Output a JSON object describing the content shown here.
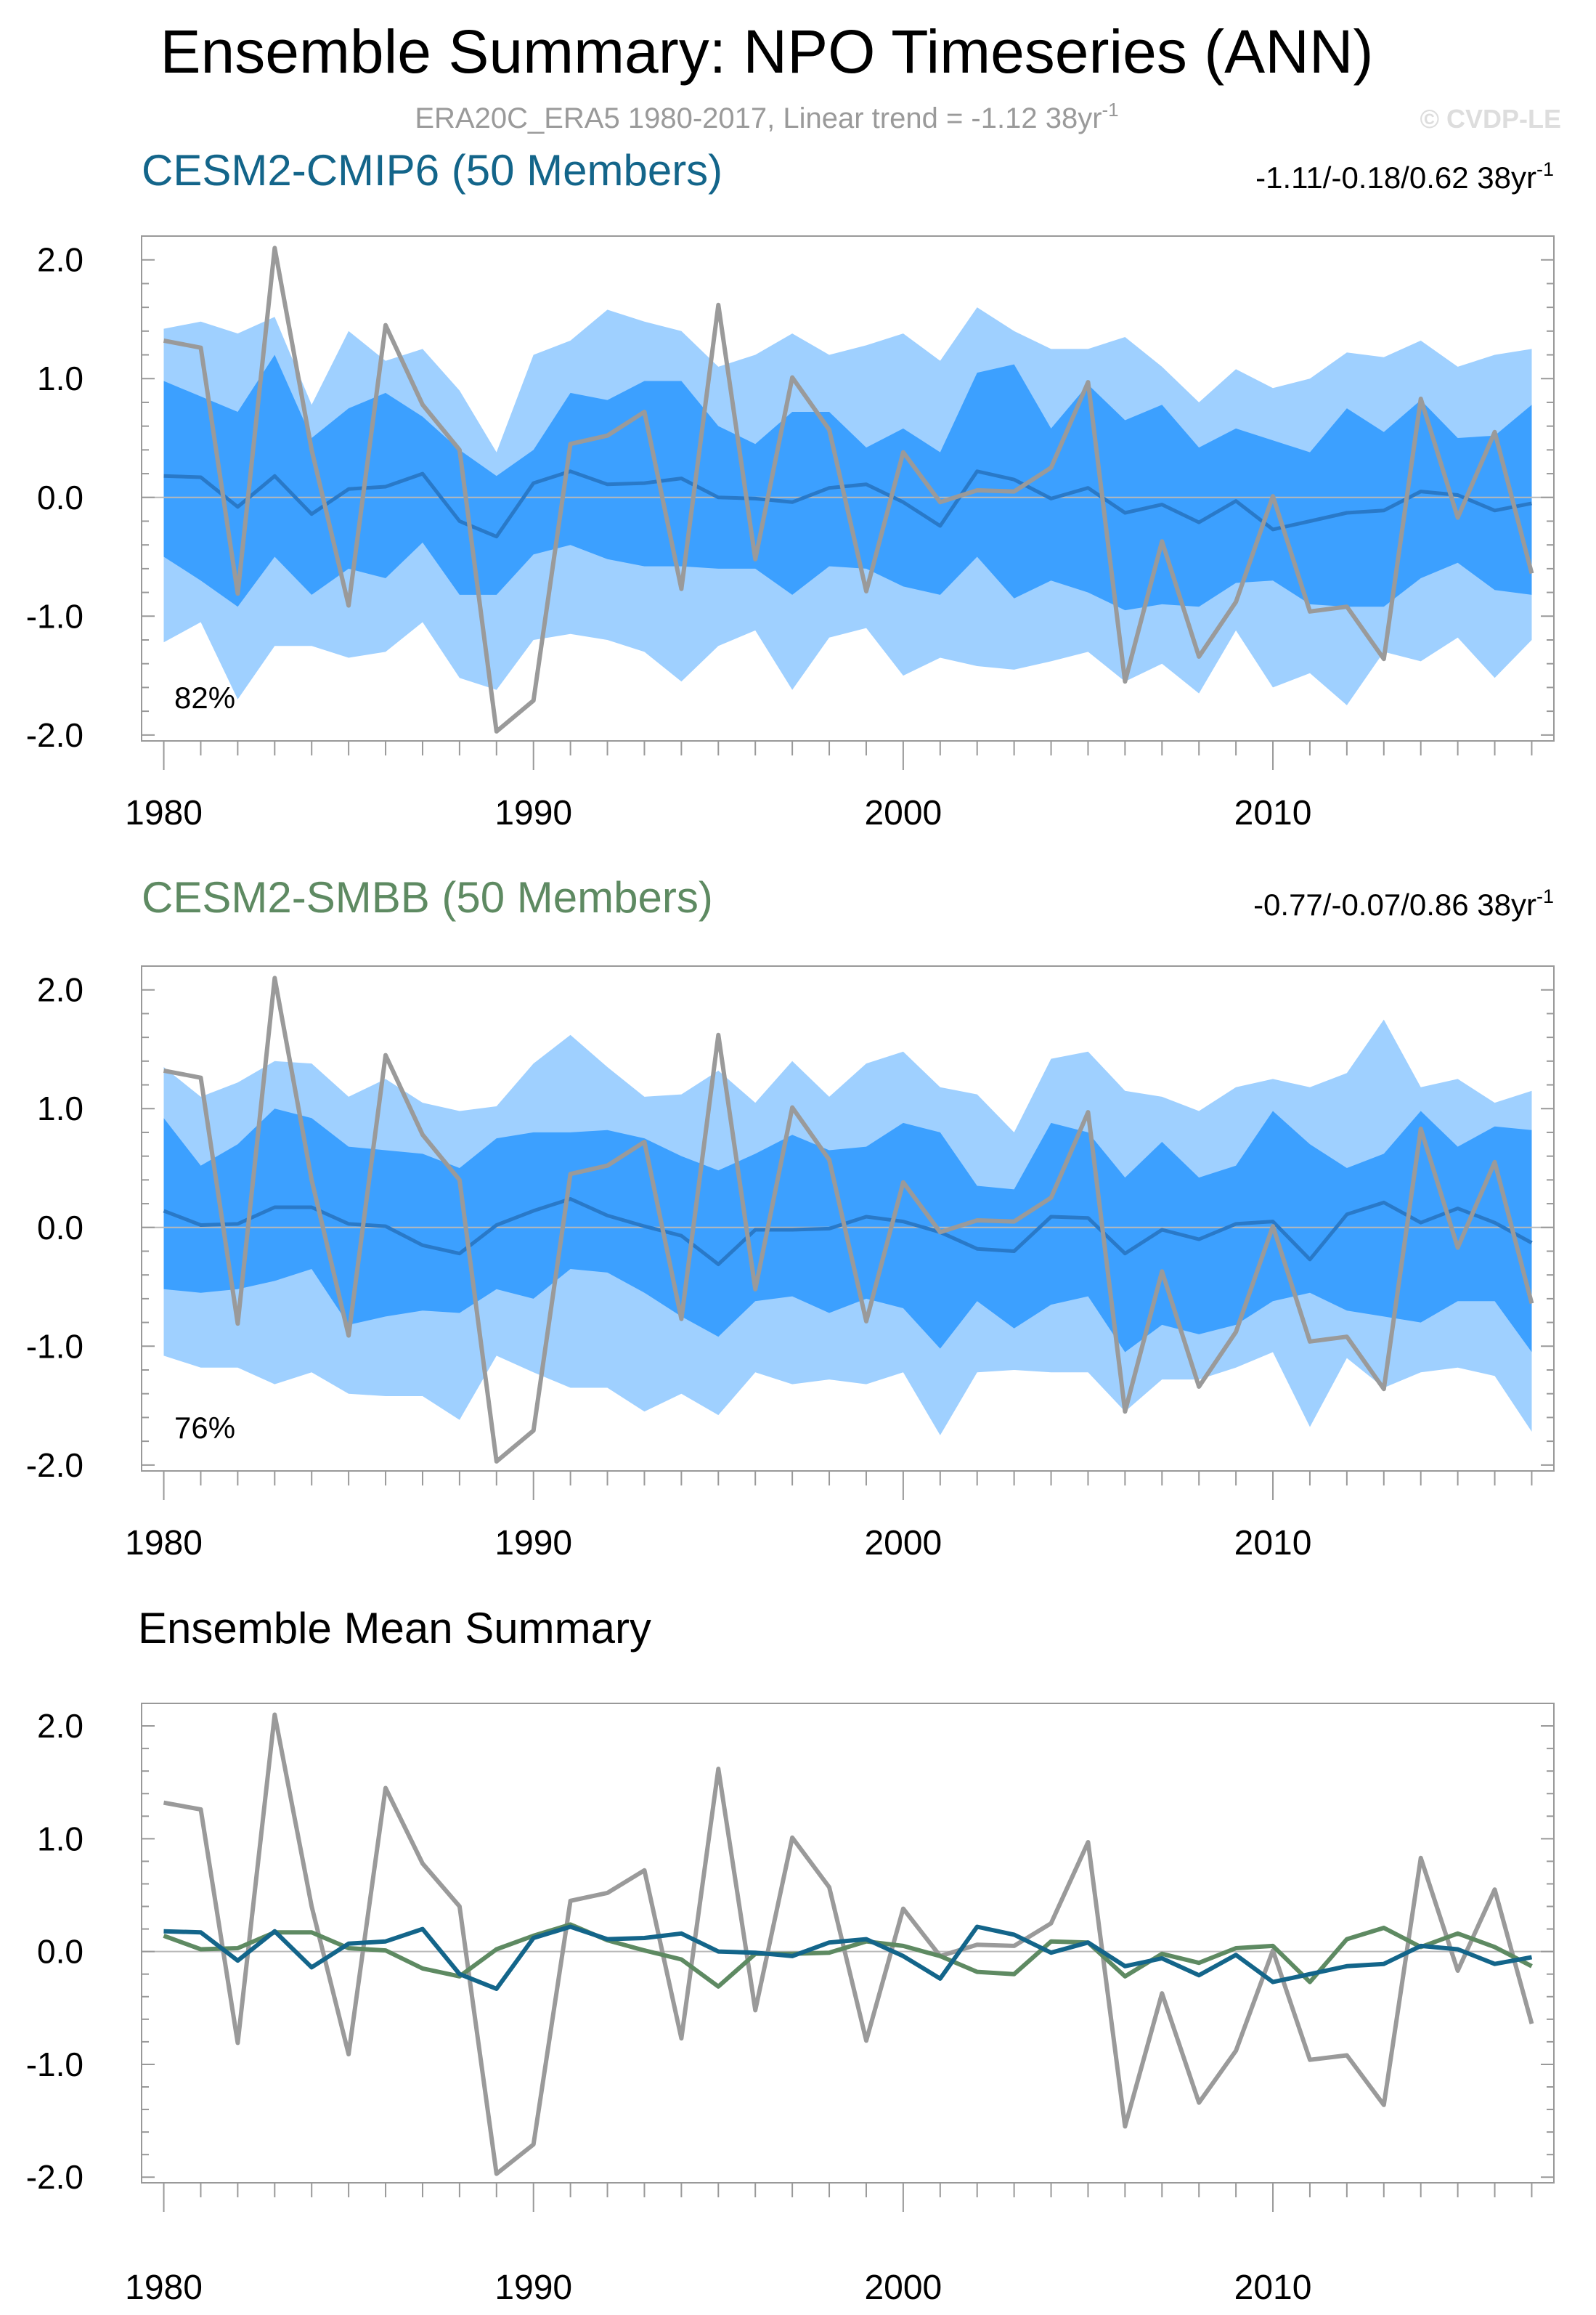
{
  "page": {
    "title": "Ensemble Summary: NPO Timeseries (ANN)",
    "subtitle_prefix": "ERA20C_ERA5 1980-2017, Linear trend = -1.12 38yr",
    "subtitle_sup": "-1",
    "copyright": "© CVDP-LE"
  },
  "colors": {
    "band_outer": "#9fd0ff",
    "band_inner": "#3ca0ff",
    "ens_line": "#2979c8",
    "obs_line": "#9a9a9a",
    "cmip6": "#13658a",
    "smbb": "#5e8a62",
    "zero": "#b8b8b8",
    "frame": "#999999"
  },
  "chart_data": [
    {
      "type": "area",
      "panel": "cmip6",
      "title": "CESM2-CMIP6 (50 Members)",
      "trend_label": "-1.11/-0.18/0.62 38yr",
      "trend_sup": "-1",
      "pct_label": "82%",
      "x": [
        1980,
        1981,
        1982,
        1983,
        1984,
        1985,
        1986,
        1987,
        1988,
        1989,
        1990,
        1991,
        1992,
        1993,
        1994,
        1995,
        1996,
        1997,
        1998,
        1999,
        2000,
        2001,
        2002,
        2003,
        2004,
        2005,
        2006,
        2007,
        2008,
        2009,
        2010,
        2011,
        2012,
        2013,
        2014,
        2015,
        2016,
        2017
      ],
      "xlim": [
        1979.4,
        2017.6
      ],
      "ylim": [
        -2.05,
        2.2
      ],
      "xticks": [
        1980,
        1990,
        2000,
        2010
      ],
      "xtick_labels": [
        "1980",
        "1990",
        "2000",
        "2010"
      ],
      "yticks": [
        -2.0,
        -1.0,
        0.0,
        1.0,
        2.0
      ],
      "ytick_labels": [
        "-2.0",
        "-1.0",
        "0.0",
        "1.0",
        "2.0"
      ],
      "series": [
        {
          "name": "ensemble max",
          "values": [
            1.42,
            1.48,
            1.38,
            1.52,
            0.78,
            1.4,
            1.15,
            1.25,
            0.9,
            0.38,
            1.2,
            1.32,
            1.58,
            1.48,
            1.4,
            1.1,
            1.2,
            1.38,
            1.2,
            1.28,
            1.38,
            1.15,
            1.6,
            1.4,
            1.25,
            1.25,
            1.35,
            1.1,
            0.8,
            1.08,
            0.92,
            1.0,
            1.22,
            1.18,
            1.32,
            1.1,
            1.2,
            1.25
          ]
        },
        {
          "name": "ensemble 90th pct",
          "values": [
            0.98,
            0.85,
            0.72,
            1.2,
            0.5,
            0.75,
            0.88,
            0.68,
            0.4,
            0.18,
            0.4,
            0.88,
            0.82,
            0.98,
            0.98,
            0.6,
            0.45,
            0.72,
            0.72,
            0.42,
            0.58,
            0.38,
            1.05,
            1.12,
            0.58,
            0.95,
            0.65,
            0.78,
            0.42,
            0.58,
            0.48,
            0.38,
            0.75,
            0.55,
            0.82,
            0.5,
            0.52,
            0.78
          ]
        },
        {
          "name": "ensemble mean",
          "values": [
            0.18,
            0.17,
            -0.08,
            0.18,
            -0.14,
            0.07,
            0.09,
            0.2,
            -0.2,
            -0.33,
            0.12,
            0.22,
            0.11,
            0.12,
            0.16,
            0.0,
            -0.01,
            -0.04,
            0.08,
            0.11,
            -0.04,
            -0.24,
            0.22,
            0.15,
            -0.01,
            0.08,
            -0.13,
            -0.06,
            -0.21,
            -0.03,
            -0.27,
            -0.2,
            -0.13,
            -0.11,
            0.05,
            0.02,
            -0.11,
            -0.05
          ]
        },
        {
          "name": "ensemble 10th pct",
          "values": [
            -0.5,
            -0.7,
            -0.92,
            -0.5,
            -0.82,
            -0.6,
            -0.68,
            -0.38,
            -0.82,
            -0.82,
            -0.48,
            -0.4,
            -0.52,
            -0.58,
            -0.58,
            -0.6,
            -0.6,
            -0.82,
            -0.58,
            -0.6,
            -0.75,
            -0.82,
            -0.5,
            -0.85,
            -0.7,
            -0.8,
            -0.95,
            -0.9,
            -0.92,
            -0.72,
            -0.7,
            -0.9,
            -0.92,
            -0.92,
            -0.68,
            -0.55,
            -0.78,
            -0.82
          ]
        },
        {
          "name": "ensemble min",
          "values": [
            -1.22,
            -1.05,
            -1.7,
            -1.25,
            -1.25,
            -1.35,
            -1.3,
            -1.05,
            -1.52,
            -1.62,
            -1.2,
            -1.15,
            -1.2,
            -1.3,
            -1.55,
            -1.25,
            -1.12,
            -1.62,
            -1.18,
            -1.1,
            -1.5,
            -1.35,
            -1.42,
            -1.45,
            -1.38,
            -1.3,
            -1.55,
            -1.4,
            -1.65,
            -1.12,
            -1.6,
            -1.48,
            -1.75,
            -1.3,
            -1.38,
            -1.18,
            -1.52,
            -1.2
          ]
        },
        {
          "name": "ERA20C_ERA5",
          "values": [
            1.32,
            1.26,
            -0.81,
            2.1,
            0.4,
            -0.91,
            1.45,
            0.78,
            0.4,
            -1.97,
            -1.71,
            0.45,
            0.52,
            0.72,
            -0.77,
            1.62,
            -0.52,
            1.01,
            0.57,
            -0.79,
            0.38,
            -0.04,
            0.06,
            0.05,
            0.25,
            0.97,
            -1.55,
            -0.37,
            -1.34,
            -0.88,
            0.01,
            -0.96,
            -0.92,
            -1.36,
            0.83,
            -0.17,
            0.55,
            -0.64
          ]
        }
      ]
    },
    {
      "type": "area",
      "panel": "smbb",
      "title": "CESM2-SMBB (50 Members)",
      "trend_label": "-0.77/-0.07/0.86 38yr",
      "trend_sup": "-1",
      "pct_label": "76%",
      "x": [
        1980,
        1981,
        1982,
        1983,
        1984,
        1985,
        1986,
        1987,
        1988,
        1989,
        1990,
        1991,
        1992,
        1993,
        1994,
        1995,
        1996,
        1997,
        1998,
        1999,
        2000,
        2001,
        2002,
        2003,
        2004,
        2005,
        2006,
        2007,
        2008,
        2009,
        2010,
        2011,
        2012,
        2013,
        2014,
        2015,
        2016,
        2017
      ],
      "xlim": [
        1979.4,
        2017.6
      ],
      "ylim": [
        -2.05,
        2.2
      ],
      "xticks": [
        1980,
        1990,
        2000,
        2010
      ],
      "xtick_labels": [
        "1980",
        "1990",
        "2000",
        "2010"
      ],
      "yticks": [
        -2.0,
        -1.0,
        0.0,
        1.0,
        2.0
      ],
      "ytick_labels": [
        "-2.0",
        "-1.0",
        "0.0",
        "1.0",
        "2.0"
      ],
      "series": [
        {
          "name": "ensemble max",
          "values": [
            1.35,
            1.1,
            1.22,
            1.4,
            1.38,
            1.1,
            1.25,
            1.05,
            0.98,
            1.02,
            1.38,
            1.62,
            1.35,
            1.1,
            1.12,
            1.32,
            1.05,
            1.4,
            1.1,
            1.38,
            1.48,
            1.18,
            1.12,
            0.8,
            1.42,
            1.48,
            1.15,
            1.1,
            0.98,
            1.18,
            1.25,
            1.18,
            1.3,
            1.75,
            1.18,
            1.25,
            1.05,
            1.15
          ]
        },
        {
          "name": "ensemble 90th pct",
          "values": [
            0.92,
            0.52,
            0.7,
            1.0,
            0.92,
            0.68,
            0.65,
            0.62,
            0.5,
            0.75,
            0.8,
            0.8,
            0.82,
            0.75,
            0.6,
            0.48,
            0.62,
            0.78,
            0.65,
            0.68,
            0.88,
            0.8,
            0.35,
            0.32,
            0.88,
            0.8,
            0.42,
            0.72,
            0.42,
            0.52,
            0.98,
            0.7,
            0.5,
            0.62,
            0.98,
            0.68,
            0.85,
            0.82
          ]
        },
        {
          "name": "ensemble mean",
          "values": [
            0.14,
            0.02,
            0.03,
            0.17,
            0.17,
            0.03,
            0.01,
            -0.15,
            -0.22,
            0.02,
            0.14,
            0.24,
            0.1,
            0.01,
            -0.07,
            -0.31,
            -0.02,
            -0.02,
            -0.01,
            0.09,
            0.05,
            -0.04,
            -0.18,
            -0.2,
            0.09,
            0.08,
            -0.22,
            -0.02,
            -0.1,
            0.03,
            0.05,
            -0.27,
            0.11,
            0.21,
            0.04,
            0.16,
            0.04,
            -0.13
          ]
        },
        {
          "name": "ensemble 10th pct",
          "values": [
            -0.52,
            -0.55,
            -0.52,
            -0.45,
            -0.35,
            -0.82,
            -0.75,
            -0.7,
            -0.72,
            -0.52,
            -0.6,
            -0.35,
            -0.38,
            -0.55,
            -0.75,
            -0.92,
            -0.62,
            -0.58,
            -0.72,
            -0.6,
            -0.68,
            -1.02,
            -0.62,
            -0.85,
            -0.65,
            -0.58,
            -1.05,
            -0.82,
            -0.9,
            -0.82,
            -0.62,
            -0.55,
            -0.7,
            -0.75,
            -0.8,
            -0.62,
            -0.62,
            -1.05
          ]
        },
        {
          "name": "ensemble min",
          "values": [
            -1.08,
            -1.18,
            -1.18,
            -1.32,
            -1.22,
            -1.4,
            -1.42,
            -1.42,
            -1.62,
            -1.08,
            -1.22,
            -1.35,
            -1.35,
            -1.55,
            -1.4,
            -1.58,
            -1.22,
            -1.32,
            -1.28,
            -1.32,
            -1.22,
            -1.75,
            -1.22,
            -1.2,
            -1.22,
            -1.22,
            -1.55,
            -1.28,
            -1.28,
            -1.18,
            -1.05,
            -1.68,
            -1.1,
            -1.35,
            -1.22,
            -1.18,
            -1.25,
            -1.72
          ]
        },
        {
          "name": "ERA20C_ERA5",
          "values": [
            1.32,
            1.26,
            -0.81,
            2.1,
            0.4,
            -0.91,
            1.45,
            0.78,
            0.4,
            -1.97,
            -1.71,
            0.45,
            0.52,
            0.72,
            -0.77,
            1.62,
            -0.52,
            1.01,
            0.57,
            -0.79,
            0.38,
            -0.04,
            0.06,
            0.05,
            0.25,
            0.97,
            -1.55,
            -0.37,
            -1.34,
            -0.88,
            0.01,
            -0.96,
            -0.92,
            -1.36,
            0.83,
            -0.17,
            0.55,
            -0.64
          ]
        }
      ]
    },
    {
      "type": "line",
      "panel": "mean",
      "title": "Ensemble Mean Summary",
      "x": [
        1980,
        1981,
        1982,
        1983,
        1984,
        1985,
        1986,
        1987,
        1988,
        1989,
        1990,
        1991,
        1992,
        1993,
        1994,
        1995,
        1996,
        1997,
        1998,
        1999,
        2000,
        2001,
        2002,
        2003,
        2004,
        2005,
        2006,
        2007,
        2008,
        2009,
        2010,
        2011,
        2012,
        2013,
        2014,
        2015,
        2016,
        2017
      ],
      "xlim": [
        1979.4,
        2017.6
      ],
      "ylim": [
        -2.05,
        2.2
      ],
      "xticks": [
        1980,
        1990,
        2000,
        2010
      ],
      "xtick_labels": [
        "1980",
        "1990",
        "2000",
        "2010"
      ],
      "yticks": [
        -2.0,
        -1.0,
        0.0,
        1.0,
        2.0
      ],
      "ytick_labels": [
        "-2.0",
        "-1.0",
        "0.0",
        "1.0",
        "2.0"
      ],
      "series": [
        {
          "name": "ERA20C_ERA5",
          "values": [
            1.32,
            1.26,
            -0.81,
            2.1,
            0.4,
            -0.91,
            1.45,
            0.78,
            0.4,
            -1.97,
            -1.71,
            0.45,
            0.52,
            0.72,
            -0.77,
            1.62,
            -0.52,
            1.01,
            0.57,
            -0.79,
            0.38,
            -0.04,
            0.06,
            0.05,
            0.25,
            0.97,
            -1.55,
            -0.37,
            -1.34,
            -0.88,
            0.01,
            -0.96,
            -0.92,
            -1.36,
            0.83,
            -0.17,
            0.55,
            -0.64
          ]
        },
        {
          "name": "CESM2-SMBB",
          "values": [
            0.14,
            0.02,
            0.03,
            0.17,
            0.17,
            0.03,
            0.01,
            -0.15,
            -0.22,
            0.02,
            0.14,
            0.24,
            0.1,
            0.01,
            -0.07,
            -0.31,
            -0.02,
            -0.02,
            -0.01,
            0.09,
            0.05,
            -0.04,
            -0.18,
            -0.2,
            0.09,
            0.08,
            -0.22,
            -0.02,
            -0.1,
            0.03,
            0.05,
            -0.27,
            0.11,
            0.21,
            0.04,
            0.16,
            0.04,
            -0.13
          ]
        },
        {
          "name": "CESM2-CMIP6",
          "values": [
            0.18,
            0.17,
            -0.08,
            0.18,
            -0.14,
            0.07,
            0.09,
            0.2,
            -0.2,
            -0.33,
            0.12,
            0.22,
            0.11,
            0.12,
            0.16,
            0.0,
            -0.01,
            -0.04,
            0.08,
            0.11,
            -0.04,
            -0.24,
            0.22,
            0.15,
            -0.01,
            0.08,
            -0.13,
            -0.06,
            -0.21,
            -0.03,
            -0.27,
            -0.2,
            -0.13,
            -0.11,
            0.05,
            0.02,
            -0.11,
            -0.05
          ]
        }
      ]
    }
  ]
}
